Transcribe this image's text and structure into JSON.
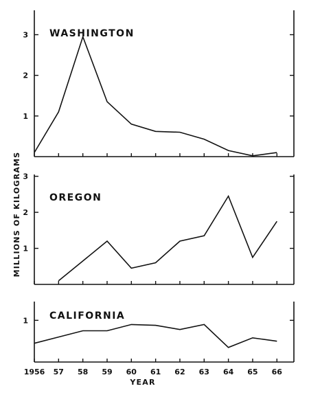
{
  "chart_data": {
    "type": "line",
    "ylabel": "MILLIONS OF KILOGRAMS",
    "xlabel": "YEAR",
    "x_tick_labels": [
      "1956",
      "57",
      "58",
      "59",
      "60",
      "61",
      "62",
      "63",
      "64",
      "65",
      "66"
    ],
    "x_values": [
      1956,
      1957,
      1958,
      1959,
      1960,
      1961,
      1962,
      1963,
      1964,
      1965,
      1966
    ],
    "xlim": [
      1956,
      1966.7
    ],
    "panels": [
      {
        "name": "WASHINGTON",
        "x": [
          1956,
          1957,
          1958,
          1959,
          1960,
          1961,
          1962,
          1963,
          1964,
          1965,
          1966
        ],
        "values": [
          0.1,
          1.1,
          2.95,
          1.35,
          0.8,
          0.62,
          0.6,
          0.43,
          0.15,
          0.02,
          0.1
        ],
        "ylim": [
          0,
          3.6
        ],
        "yticks": [
          1,
          2,
          3
        ],
        "ytick_labels": [
          "1",
          "2",
          "3"
        ]
      },
      {
        "name": "OREGON",
        "x": [
          1957,
          1958,
          1959,
          1960,
          1961,
          1962,
          1963,
          1964,
          1965,
          1966
        ],
        "values": [
          0.1,
          0.65,
          1.2,
          0.45,
          0.6,
          1.2,
          1.35,
          2.45,
          0.75,
          1.75
        ],
        "ylim": [
          0,
          3.05
        ],
        "yticks": [
          1,
          2,
          3
        ],
        "ytick_labels": [
          "1",
          "2",
          "3"
        ]
      },
      {
        "name": "CALIFORNIA",
        "x": [
          1956,
          1957,
          1958,
          1959,
          1960,
          1961,
          1962,
          1963,
          1964,
          1965,
          1966
        ],
        "values": [
          0.45,
          0.6,
          0.75,
          0.75,
          0.9,
          0.88,
          0.78,
          0.9,
          0.35,
          0.58,
          0.5
        ],
        "ylim": [
          0,
          1.45
        ],
        "yticks": [
          1
        ],
        "ytick_labels": [
          "1"
        ]
      }
    ]
  }
}
